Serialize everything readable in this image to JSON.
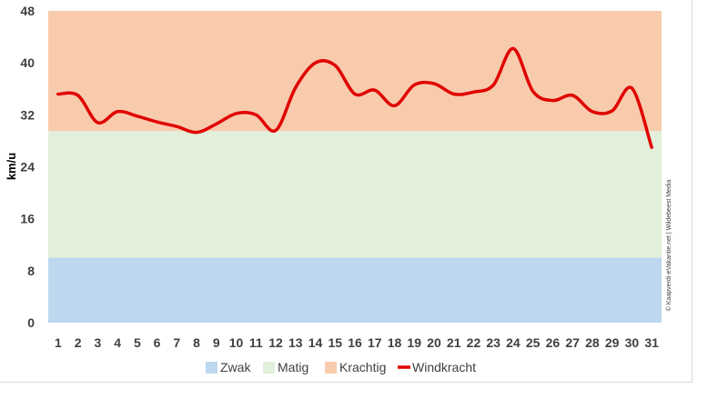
{
  "chart_data": {
    "type": "line",
    "ylabel": "km/u",
    "xlabel": "",
    "ylim": [
      0,
      48
    ],
    "yticks": [
      0,
      8,
      16,
      24,
      32,
      40,
      48
    ],
    "categories": [
      "1",
      "2",
      "3",
      "4",
      "5",
      "6",
      "7",
      "8",
      "9",
      "10",
      "11",
      "12",
      "13",
      "14",
      "15",
      "16",
      "17",
      "18",
      "19",
      "20",
      "21",
      "22",
      "23",
      "24",
      "25",
      "26",
      "27",
      "28",
      "29",
      "30",
      "31"
    ],
    "bands": [
      {
        "name": "Zwak",
        "from": 0,
        "to": 10,
        "color": "#bdd7ee"
      },
      {
        "name": "Matig",
        "from": 10,
        "to": 29.5,
        "color": "#e2efda"
      },
      {
        "name": "Krachtig",
        "from": 29.5,
        "to": 50,
        "color": "#f8cbad"
      }
    ],
    "series": [
      {
        "name": "Windkracht",
        "color": "#e00000",
        "values": [
          35.2,
          35.0,
          30.8,
          32.5,
          31.8,
          30.9,
          30.2,
          29.3,
          30.6,
          32.2,
          32.0,
          29.6,
          36.2,
          40.0,
          39.6,
          35.2,
          35.8,
          33.4,
          36.6,
          36.8,
          35.2,
          35.5,
          36.6,
          42.2,
          35.6,
          34.2,
          35.0,
          32.5,
          32.6,
          36.1,
          27.0
        ]
      }
    ],
    "legend_position": "bottom",
    "credit": "© Kaapverdi-eVakantie.net | Wildebeest Media"
  }
}
